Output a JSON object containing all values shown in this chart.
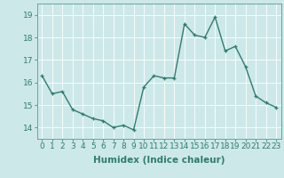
{
  "x": [
    0,
    1,
    2,
    3,
    4,
    5,
    6,
    7,
    8,
    9,
    10,
    11,
    12,
    13,
    14,
    15,
    16,
    17,
    18,
    19,
    20,
    21,
    22,
    23
  ],
  "y": [
    16.3,
    15.5,
    15.6,
    14.8,
    14.6,
    14.4,
    14.3,
    14.0,
    14.1,
    13.9,
    15.8,
    16.3,
    16.2,
    16.2,
    18.6,
    18.1,
    18.0,
    18.9,
    17.4,
    17.6,
    16.7,
    15.4,
    15.1,
    14.9
  ],
  "line_color": "#2e7d6e",
  "marker": "+",
  "marker_size": 3,
  "bg_color": "#cde8e8",
  "grid_color": "#ffffff",
  "xlabel": "Humidex (Indice chaleur)",
  "ylim": [
    13.5,
    19.5
  ],
  "xlim": [
    -0.5,
    23.5
  ],
  "yticks": [
    14,
    15,
    16,
    17,
    18,
    19
  ],
  "xticks": [
    0,
    1,
    2,
    3,
    4,
    5,
    6,
    7,
    8,
    9,
    10,
    11,
    12,
    13,
    14,
    15,
    16,
    17,
    18,
    19,
    20,
    21,
    22,
    23
  ],
  "xtick_labels": [
    "0",
    "1",
    "2",
    "3",
    "4",
    "5",
    "6",
    "7",
    "8",
    "9",
    "10",
    "11",
    "12",
    "13",
    "14",
    "15",
    "16",
    "17",
    "18",
    "19",
    "20",
    "21",
    "22",
    "23"
  ],
  "ytick_labels": [
    "14",
    "15",
    "16",
    "17",
    "18",
    "19"
  ],
  "xlabel_fontsize": 7.5,
  "tick_fontsize": 6.5,
  "line_width": 1.0,
  "spine_color": "#5a9a9a",
  "tick_color": "#2e7d6e"
}
